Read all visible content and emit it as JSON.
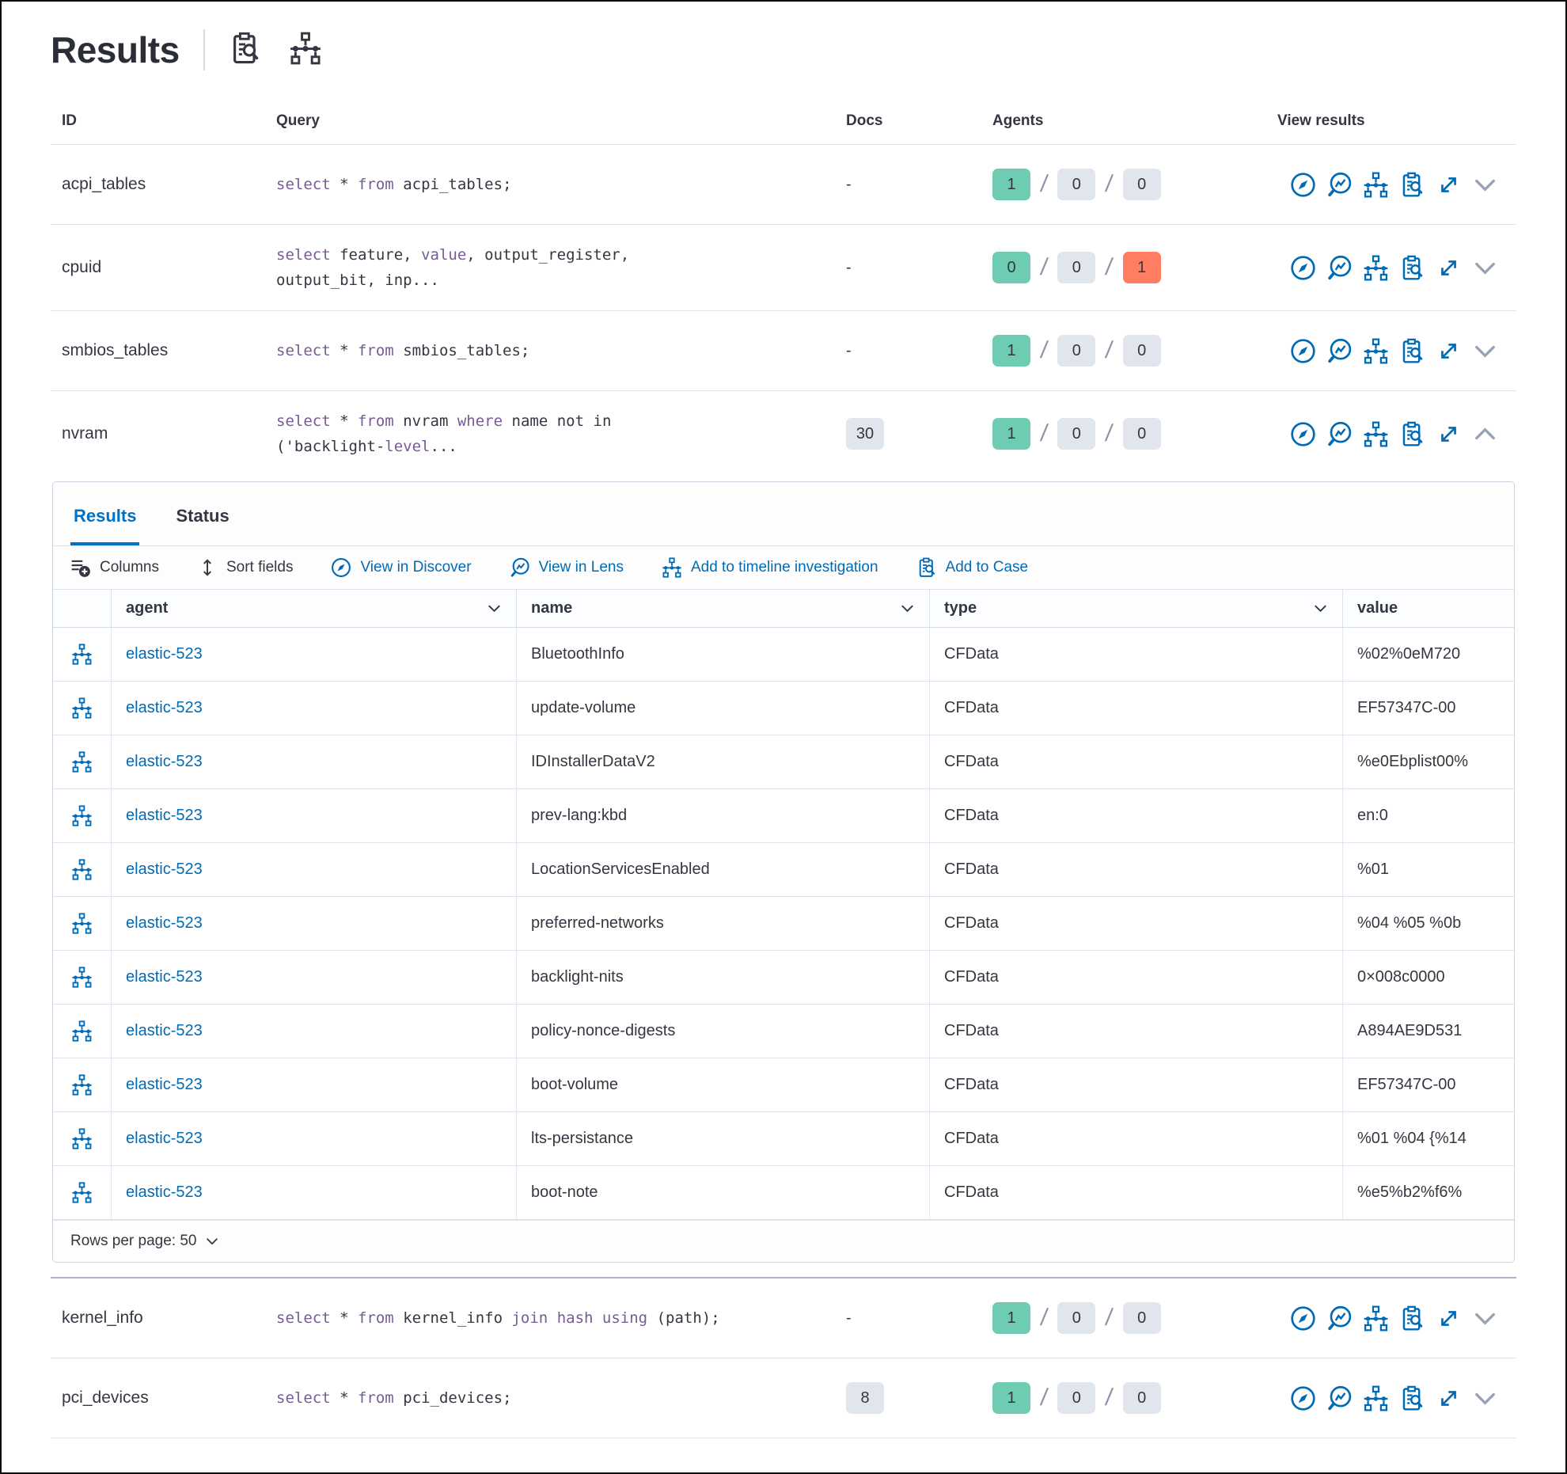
{
  "colors": {
    "accent_blue": "#006bb4",
    "tab_active_blue": "#0071c2",
    "keyword_purple": "#765b96",
    "badge_green": "#6dccb1",
    "badge_gray": "#e0e5ee",
    "badge_orange": "#ff7e62",
    "text_dark": "#343741"
  },
  "sql_keywords": [
    "select",
    "from",
    "where",
    "value",
    "join",
    "hash",
    "using",
    "level"
  ],
  "header": {
    "title": "Results",
    "icons": [
      "inspect-case-icon",
      "timeline-icon"
    ]
  },
  "results_table": {
    "columns": {
      "id": "ID",
      "query": "Query",
      "docs": "Docs",
      "agents": "Agents",
      "view_results": "View results"
    },
    "rows": [
      {
        "id": "acpi_tables",
        "query": "select * from acpi_tables;",
        "docs": "-",
        "agents": [
          "1",
          "0",
          "0"
        ]
      },
      {
        "id": "cpuid",
        "query": "select feature, value, output_register,\noutput_bit, inp...",
        "docs": "-",
        "agents": [
          "0",
          "0",
          "1"
        ]
      },
      {
        "id": "smbios_tables",
        "query": "select * from smbios_tables;",
        "docs": "-",
        "agents": [
          "1",
          "0",
          "0"
        ]
      },
      {
        "id": "nvram",
        "query": "select * from nvram where name not in\n('backlight-level...",
        "docs": "30",
        "agents": [
          "1",
          "0",
          "0"
        ]
      },
      {
        "id": "kernel_info",
        "query": "select * from kernel_info join hash using (path);",
        "docs": "-",
        "agents": [
          "1",
          "0",
          "0"
        ]
      },
      {
        "id": "pci_devices",
        "query": "select * from pci_devices;",
        "docs": "8",
        "agents": [
          "1",
          "0",
          "0"
        ]
      }
    ]
  },
  "expanded_panel": {
    "tabs": [
      {
        "label": "Results"
      },
      {
        "label": "Status"
      }
    ],
    "toolbar": {
      "columns": "Columns",
      "sort_fields": "Sort fields",
      "view_in_discover": "View in Discover",
      "view_in_lens": "View in Lens",
      "add_to_timeline": "Add to timeline investigation",
      "add_to_case": "Add to Case"
    },
    "grid": {
      "headers": {
        "agent": "agent",
        "name": "name",
        "type": "type",
        "value": "value"
      },
      "rows": [
        {
          "agent": "elastic-523",
          "name": "BluetoothInfo",
          "type": "CFData",
          "value": "%02%0eM720"
        },
        {
          "agent": "elastic-523",
          "name": "update-volume",
          "type": "CFData",
          "value": "EF57347C-00"
        },
        {
          "agent": "elastic-523",
          "name": "IDInstallerDataV2",
          "type": "CFData",
          "value": "%e0Ebplist00%"
        },
        {
          "agent": "elastic-523",
          "name": "prev-lang:kbd",
          "type": "CFData",
          "value": "en:0"
        },
        {
          "agent": "elastic-523",
          "name": "LocationServicesEnabled",
          "type": "CFData",
          "value": "%01"
        },
        {
          "agent": "elastic-523",
          "name": "preferred-networks",
          "type": "CFData",
          "value": "%04 %05 %0b"
        },
        {
          "agent": "elastic-523",
          "name": "backlight-nits",
          "type": "CFData",
          "value": "0×008c0000"
        },
        {
          "agent": "elastic-523",
          "name": "policy-nonce-digests",
          "type": "CFData",
          "value": "A894AE9D531"
        },
        {
          "agent": "elastic-523",
          "name": "boot-volume",
          "type": "CFData",
          "value": "EF57347C-00"
        },
        {
          "agent": "elastic-523",
          "name": "lts-persistance",
          "type": "CFData",
          "value": "%01 %04 {%14"
        },
        {
          "agent": "elastic-523",
          "name": "boot-note",
          "type": "CFData",
          "value": "%e5%b2%f6%"
        }
      ],
      "pagination": "Rows per page: 50"
    }
  }
}
